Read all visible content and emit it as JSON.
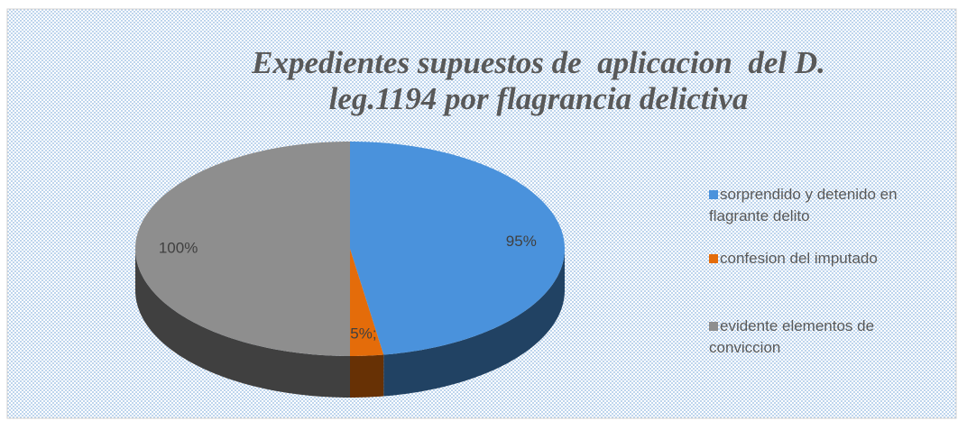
{
  "chart_data": {
    "type": "pie",
    "title": "Expedientes supuestos de  aplicacion  del D. leg.1194 por flagrancia delictiva",
    "categories": [
      "sorprendido y detenido en flagrante delito",
      "confesion del imputado",
      "evidente elementos de conviccion"
    ],
    "values": [
      95,
      5,
      100
    ],
    "value_labels": [
      "95%",
      "5%;",
      "100%"
    ],
    "colors": [
      "#4a92dc",
      "#e46c0a",
      "#8e8e8e"
    ],
    "legend": "right"
  }
}
